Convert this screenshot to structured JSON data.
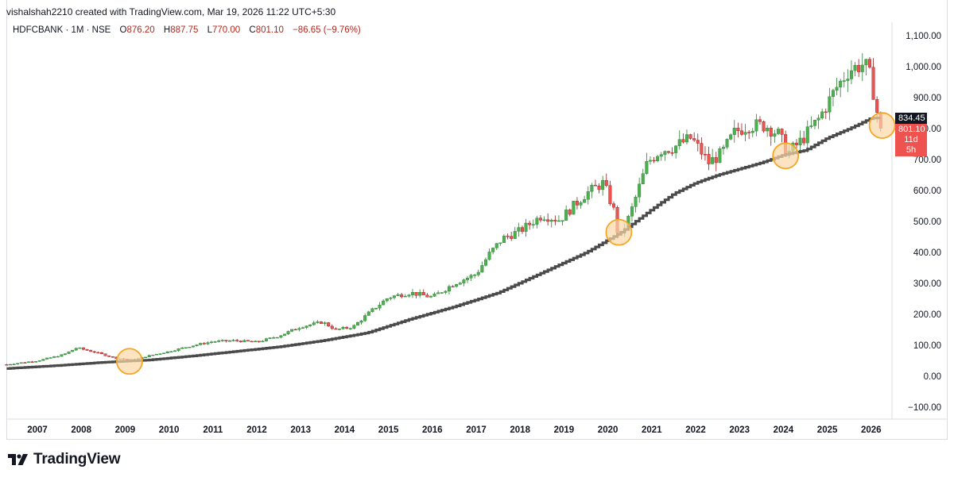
{
  "header": {
    "created_line": "vishalshah2210 created with TradingView.com, Mar 19, 2026 11:22 UTC+5:30"
  },
  "legend": {
    "symbol": "HDFCBANK · 1M · NSE",
    "open_label": "O",
    "open": "876.20",
    "high_label": "H",
    "high": "887.75",
    "low_label": "L",
    "low": "770.00",
    "close_label": "C",
    "close": "801.10",
    "change": "−86.65 (−9.76%)"
  },
  "price_badges": {
    "ma_value": "834.45",
    "last_price": "801.10",
    "countdown": "11d 5h"
  },
  "brand": {
    "name": "TradingView"
  },
  "colors": {
    "up": "#26a69a",
    "up_soft": "#4caf50",
    "down": "#ef5350",
    "moving_average": "#4a4a4a",
    "highlight_fill": "#fbd9a9",
    "highlight_stroke": "#f5a623",
    "axis_text": "#131722"
  },
  "chart_data": {
    "type": "candlestick",
    "title": "HDFCBANK · 1M · NSE",
    "y_axis": {
      "side": "right",
      "ticks": [
        "1,100.00",
        "1,000.00",
        "900.00",
        "800.00",
        "700.00",
        "600.00",
        "500.00",
        "400.00",
        "300.00",
        "200.00",
        "100.00",
        "0.00",
        "−100.00"
      ],
      "range": [
        -100,
        1100
      ]
    },
    "x_axis": {
      "ticks": [
        "2007",
        "2008",
        "2009",
        "2010",
        "2011",
        "2012",
        "2013",
        "2014",
        "2015",
        "2016",
        "2017",
        "2018",
        "2019",
        "2020",
        "2021",
        "2022",
        "2023",
        "2024",
        "2025",
        "2026"
      ],
      "range_years": [
        2006.3,
        2026.6
      ]
    },
    "price_anchors": [
      [
        2006.3,
        38
      ],
      [
        2007.0,
        50
      ],
      [
        2007.6,
        70
      ],
      [
        2007.9,
        92
      ],
      [
        2008.3,
        78
      ],
      [
        2008.8,
        58
      ],
      [
        2009.2,
        52
      ],
      [
        2009.5,
        65
      ],
      [
        2010.0,
        80
      ],
      [
        2010.5,
        98
      ],
      [
        2011.0,
        112
      ],
      [
        2011.5,
        115
      ],
      [
        2012.0,
        110
      ],
      [
        2012.5,
        130
      ],
      [
        2013.0,
        160
      ],
      [
        2013.5,
        175
      ],
      [
        2013.8,
        150
      ],
      [
        2014.2,
        160
      ],
      [
        2014.6,
        210
      ],
      [
        2015.0,
        255
      ],
      [
        2015.5,
        270
      ],
      [
        2016.0,
        255
      ],
      [
        2016.5,
        300
      ],
      [
        2017.0,
        330
      ],
      [
        2017.3,
        395
      ],
      [
        2017.6,
        445
      ],
      [
        2018.0,
        470
      ],
      [
        2018.5,
        520
      ],
      [
        2018.9,
        505
      ],
      [
        2019.5,
        590
      ],
      [
        2019.9,
        625
      ],
      [
        2020.15,
        530
      ],
      [
        2020.25,
        440
      ],
      [
        2020.5,
        520
      ],
      [
        2020.9,
        690
      ],
      [
        2021.2,
        730
      ],
      [
        2021.5,
        740
      ],
      [
        2021.9,
        770
      ],
      [
        2022.3,
        690
      ],
      [
        2022.6,
        720
      ],
      [
        2022.9,
        790
      ],
      [
        2023.2,
        810
      ],
      [
        2023.6,
        810
      ],
      [
        2023.9,
        780
      ],
      [
        2024.1,
        720
      ],
      [
        2024.4,
        760
      ],
      [
        2024.8,
        830
      ],
      [
        2025.2,
        930
      ],
      [
        2025.5,
        990
      ],
      [
        2025.85,
        1010
      ],
      [
        2026.0,
        960
      ],
      [
        2026.1,
        880
      ],
      [
        2026.2,
        801
      ]
    ],
    "moving_average_anchors": [
      [
        2006.3,
        25
      ],
      [
        2007.5,
        35
      ],
      [
        2008.5,
        45
      ],
      [
        2009.5,
        52
      ],
      [
        2010.5,
        65
      ],
      [
        2011.5,
        80
      ],
      [
        2012.5,
        95
      ],
      [
        2013.5,
        115
      ],
      [
        2014.5,
        140
      ],
      [
        2015.5,
        185
      ],
      [
        2016.5,
        225
      ],
      [
        2017.5,
        270
      ],
      [
        2018.5,
        335
      ],
      [
        2019.5,
        400
      ],
      [
        2020.3,
        465
      ],
      [
        2021.0,
        540
      ],
      [
        2021.5,
        590
      ],
      [
        2022.0,
        625
      ],
      [
        2022.5,
        650
      ],
      [
        2023.0,
        670
      ],
      [
        2023.5,
        690
      ],
      [
        2024.0,
        715
      ],
      [
        2024.5,
        730
      ],
      [
        2025.0,
        770
      ],
      [
        2025.5,
        800
      ],
      [
        2026.0,
        834
      ]
    ],
    "highlights": [
      {
        "x": 2009.1,
        "y": 48
      },
      {
        "x": 2020.25,
        "y": 465
      },
      {
        "x": 2024.05,
        "y": 712
      },
      {
        "x": 2026.25,
        "y": 810
      }
    ]
  }
}
